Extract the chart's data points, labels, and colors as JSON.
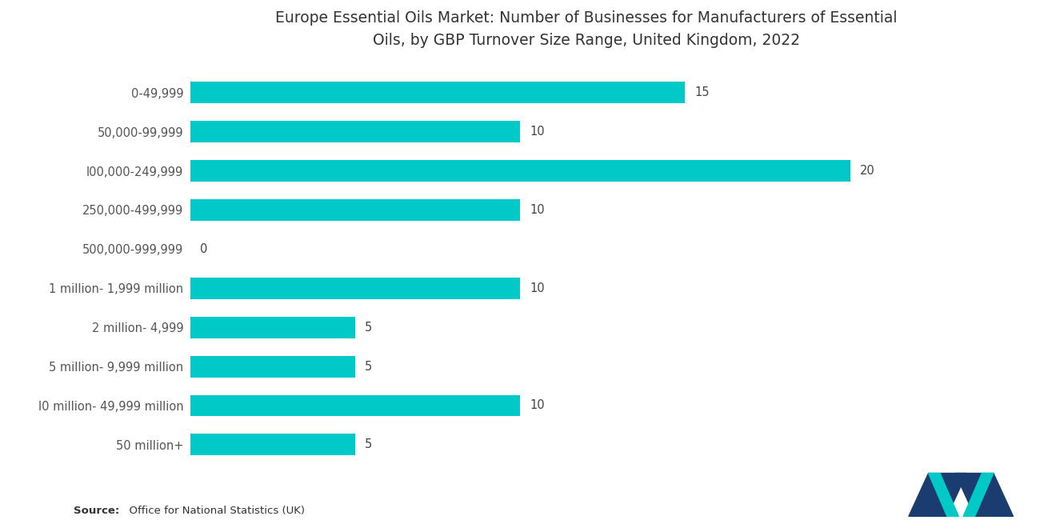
{
  "title": "Europe Essential Oils Market: Number of Businesses for Manufacturers of Essential\nOils, by GBP Turnover Size Range, United Kingdom, 2022",
  "categories": [
    "0-49,999",
    "50,000-99,999",
    "l00,000-249,999",
    "250,000-499,999",
    "500,000-999,999",
    "1 million- 1,999 million",
    "2 million- 4,999",
    "5 million- 9,999 million",
    "l0 million- 49,999 million",
    "50 million+"
  ],
  "values": [
    15,
    10,
    20,
    10,
    0,
    10,
    5,
    5,
    10,
    5
  ],
  "bar_color": "#00C9C8",
  "background_color": "#ffffff",
  "title_fontsize": 13.5,
  "label_fontsize": 10.5,
  "value_fontsize": 10.5,
  "source_bold": "Source:",
  "source_rest": "  Office for National Statistics (UK)",
  "xlim": [
    0,
    24
  ],
  "bar_height": 0.55
}
